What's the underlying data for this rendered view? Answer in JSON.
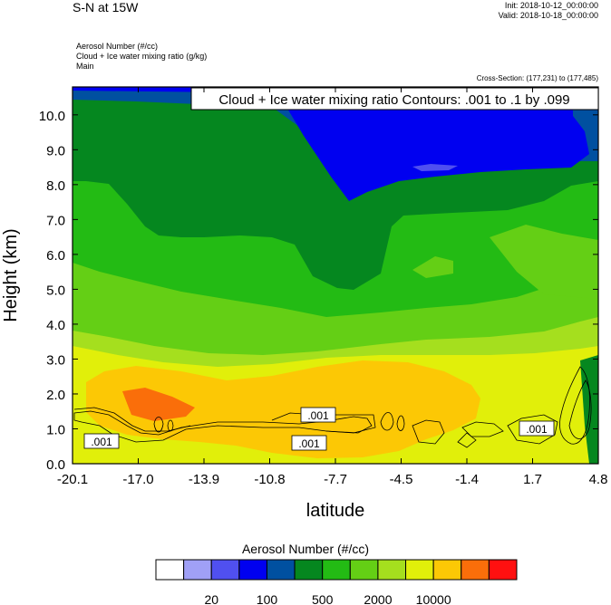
{
  "header": {
    "title": "S-N at 15W",
    "init": "Init: 2018-10-12_00:00:00",
    "valid": "Valid: 2018-10-18_00:00:00",
    "field1": "Aerosol Number   (#/cc)",
    "field2": "Cloud + Ice water mixing ratio   (g/kg)",
    "field3": "Main",
    "cross_section": "Cross-Section: (177,231) to (177,485)"
  },
  "chart_data": {
    "type": "heatmap",
    "contour_label": "Cloud + Ice water mixing ratio Contours: .001 to .1 by .099",
    "xlabel": "latitude",
    "ylabel": "Height (km)",
    "x_ticks": [
      "-20.1",
      "-17.0",
      "-13.9",
      "-10.8",
      "-7.7",
      "-4.5",
      "-1.4",
      "1.7",
      "4.8"
    ],
    "y_ticks": [
      "0.0",
      "1.0",
      "2.0",
      "3.0",
      "4.0",
      "5.0",
      "6.0",
      "7.0",
      "8.0",
      "9.0",
      "10.0"
    ],
    "xlim": [
      -20.1,
      4.8
    ],
    "ylim": [
      0.0,
      10.8
    ],
    "contour_value_labels": [
      ".001",
      ".001",
      ".001",
      ".001"
    ],
    "colorbar": {
      "title": "Aerosol Number  (#/cc)",
      "colors": [
        "#ffffff",
        "#a0a0f6",
        "#5050f0",
        "#0000f0",
        "#0050a0",
        "#05871f",
        "#23bb14",
        "#64cf15",
        "#a5df1e",
        "#e1ef0a",
        "#fcc805",
        "#fa6e0a",
        "#ff1010"
      ],
      "tick_labels": [
        "20",
        "100",
        "500",
        "2000",
        "10000"
      ]
    }
  }
}
